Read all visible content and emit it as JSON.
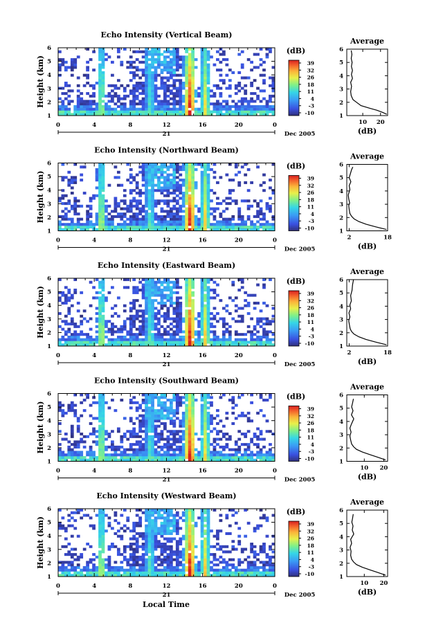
{
  "x_axis": {
    "ticks": [
      "0",
      "4",
      "8",
      "12",
      "16",
      "20",
      "0"
    ],
    "day_label": "21",
    "date_label": "Dec 2005",
    "xlabel": "Local Time"
  },
  "y_axis": {
    "label": "Height (km)",
    "ticks": [
      "1",
      "2",
      "3",
      "4",
      "5",
      "6"
    ]
  },
  "colorbar": {
    "unit": "(dB)",
    "ticks": [
      "39",
      "32",
      "26",
      "18",
      "11",
      "4",
      "-3",
      "-10"
    ]
  },
  "avg_title": "Average",
  "avg_xlabel": "(dB)",
  "chart_data": [
    {
      "type": "heatmap",
      "title": "Echo Intensity (Vertical Beam)",
      "xlabel": "",
      "ylabel": "Height (km)",
      "xlim": [
        0,
        24
      ],
      "ylim": [
        1,
        6
      ],
      "zlabel": "(dB)",
      "zlim": [
        -10,
        39
      ],
      "events": [
        {
          "t": 4.8,
          "peak": 18
        },
        {
          "t": 10.2,
          "peak": 12
        },
        {
          "t": 14.6,
          "peak": 39
        },
        {
          "t": 16.3,
          "peak": 25
        }
      ]
    },
    {
      "type": "heatmap",
      "title": "Echo Intensity (Northward Beam)",
      "xlabel": "",
      "ylabel": "Height (km)",
      "xlim": [
        0,
        24
      ],
      "ylim": [
        1,
        6
      ],
      "zlabel": "(dB)",
      "zlim": [
        -10,
        39
      ],
      "events": [
        {
          "t": 4.8,
          "peak": 20
        },
        {
          "t": 10.2,
          "peak": 14
        },
        {
          "t": 14.6,
          "peak": 39
        },
        {
          "t": 16.3,
          "peak": 26
        }
      ]
    },
    {
      "type": "heatmap",
      "title": "Echo Intensity (Eastward Beam)",
      "xlabel": "",
      "ylabel": "Height (km)",
      "xlim": [
        0,
        24
      ],
      "ylim": [
        1,
        6
      ],
      "zlabel": "(dB)",
      "zlim": [
        -10,
        39
      ],
      "events": [
        {
          "t": 4.8,
          "peak": 20
        },
        {
          "t": 10.2,
          "peak": 14
        },
        {
          "t": 14.6,
          "peak": 39
        },
        {
          "t": 16.3,
          "peak": 26
        }
      ]
    },
    {
      "type": "heatmap",
      "title": "Echo Intensity (Southward Beam)",
      "xlabel": "",
      "ylabel": "Height (km)",
      "xlim": [
        0,
        24
      ],
      "ylim": [
        1,
        6
      ],
      "zlabel": "(dB)",
      "zlim": [
        -10,
        39
      ],
      "events": [
        {
          "t": 4.8,
          "peak": 19
        },
        {
          "t": 10.2,
          "peak": 13
        },
        {
          "t": 14.6,
          "peak": 39
        },
        {
          "t": 16.3,
          "peak": 25
        }
      ]
    },
    {
      "type": "heatmap",
      "title": "Echo Intensity (Westward Beam)",
      "xlabel": "",
      "ylabel": "Height (km)",
      "xlim": [
        0,
        24
      ],
      "ylim": [
        1,
        6
      ],
      "zlabel": "(dB)",
      "zlim": [
        -10,
        39
      ],
      "events": [
        {
          "t": 4.8,
          "peak": 20
        },
        {
          "t": 10.2,
          "peak": 14
        },
        {
          "t": 14.6,
          "peak": 39
        },
        {
          "t": 16.3,
          "peak": 26
        }
      ]
    },
    {
      "type": "line",
      "title": "Average",
      "xlabel": "(dB)",
      "ylabel": "",
      "xticks": [
        "10",
        "20"
      ],
      "xlim": [
        1,
        24
      ],
      "ylim": [
        1,
        6
      ],
      "x": [
        23.5,
        21,
        18,
        14,
        9,
        6.5,
        4.5,
        3.5,
        3.2,
        3.4,
        3.7,
        3.2,
        4.2,
        3.6,
        4.2,
        3.6,
        4,
        3.5,
        3.9,
        3.5
      ],
      "y": [
        1.1,
        1.25,
        1.4,
        1.55,
        1.75,
        2.0,
        2.2,
        2.5,
        2.8,
        3.0,
        3.2,
        3.5,
        3.8,
        4.1,
        4.4,
        4.7,
        5.0,
        5.3,
        5.6,
        5.9
      ]
    },
    {
      "type": "line",
      "title": "Average",
      "xlabel": "(dB)",
      "ylabel": "",
      "xticks": [
        "2",
        "18"
      ],
      "xlim": [
        1,
        18
      ],
      "ylim": [
        1,
        6
      ],
      "x": [
        17.5,
        13,
        9,
        6,
        4,
        3,
        2.3,
        2.0,
        1.8,
        2.2,
        1.8,
        1.6,
        2.3,
        2.0,
        2.7,
        2.0,
        2.5,
        3.0,
        3.5
      ],
      "y": [
        1.1,
        1.3,
        1.5,
        1.7,
        1.9,
        2.1,
        2.3,
        2.6,
        2.9,
        3.1,
        3.4,
        3.7,
        4.1,
        4.4,
        4.7,
        5.0,
        5.3,
        5.6,
        5.8
      ]
    },
    {
      "type": "line",
      "title": "Average",
      "xlabel": "(dB)",
      "ylabel": "",
      "xticks": [
        "2",
        "18"
      ],
      "xlim": [
        1,
        18
      ],
      "ylim": [
        1,
        6
      ],
      "x": [
        17.5,
        13,
        9,
        6,
        4,
        3,
        2.4,
        2.1,
        1.8,
        2.3,
        1.9,
        2.6,
        2.3,
        2.9,
        2.6,
        3.2,
        3.4,
        3.8
      ],
      "y": [
        1.1,
        1.3,
        1.5,
        1.7,
        1.9,
        2.1,
        2.3,
        2.6,
        2.9,
        3.2,
        3.5,
        3.8,
        4.1,
        4.4,
        4.8,
        5.2,
        5.6,
        6.0
      ]
    },
    {
      "type": "line",
      "title": "Average",
      "xlabel": "(dB)",
      "ylabel": "",
      "xticks": [
        "10",
        "20"
      ],
      "xlim": [
        1,
        22
      ],
      "ylim": [
        1,
        6
      ],
      "x": [
        21,
        17,
        13,
        9,
        6,
        4.5,
        3.5,
        3.0,
        2.6,
        3.2,
        2.6,
        3.4,
        4.6,
        3.4,
        4.2,
        3.5,
        4.0,
        4.4
      ],
      "y": [
        1.1,
        1.3,
        1.5,
        1.7,
        1.9,
        2.1,
        2.3,
        2.6,
        2.9,
        3.2,
        3.5,
        3.8,
        4.2,
        4.5,
        4.8,
        5.1,
        5.4,
        5.7
      ]
    },
    {
      "type": "line",
      "title": "Average",
      "xlabel": "(dB)",
      "ylabel": "",
      "xticks": [
        "10",
        "20"
      ],
      "xlim": [
        1,
        22
      ],
      "ylim": [
        1,
        6
      ],
      "x": [
        21,
        17,
        13,
        9,
        6,
        4.5,
        3.5,
        3.0,
        3.2,
        2.7,
        3.5,
        3.0,
        4.6,
        3.8,
        4.2,
        3.6,
        4.0,
        4.3
      ],
      "y": [
        1.1,
        1.3,
        1.5,
        1.7,
        1.9,
        2.1,
        2.3,
        2.6,
        2.9,
        3.2,
        3.5,
        3.8,
        4.2,
        4.5,
        4.8,
        5.1,
        5.4,
        5.7
      ]
    }
  ]
}
